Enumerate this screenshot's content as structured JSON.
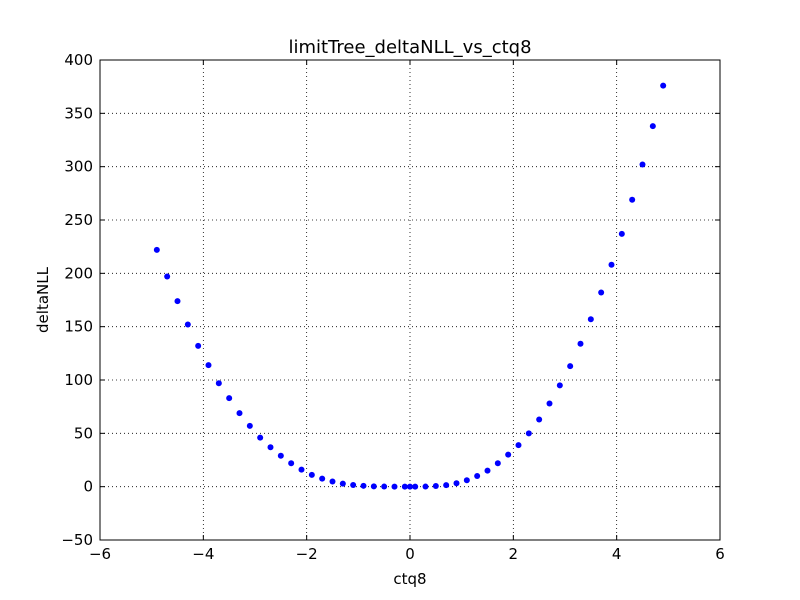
{
  "chart_data": {
    "type": "scatter",
    "title": "limitTree_deltaNLL_vs_ctq8",
    "xlabel": "ctq8",
    "ylabel": "deltaNLL",
    "xlim": [
      -6,
      6
    ],
    "ylim": [
      -50,
      400
    ],
    "xticks": [
      -6,
      -4,
      -2,
      0,
      2,
      4,
      6
    ],
    "xtick_labels": [
      "−6",
      "−4",
      "−2",
      "0",
      "2",
      "4",
      "6"
    ],
    "yticks": [
      -50,
      0,
      50,
      100,
      150,
      200,
      250,
      300,
      350,
      400
    ],
    "ytick_labels": [
      "−50",
      "0",
      "50",
      "100",
      "150",
      "200",
      "250",
      "300",
      "350",
      "400"
    ],
    "grid": true,
    "marker_color": "#0000ff",
    "x": [
      -4.9,
      -4.7,
      -4.5,
      -4.3,
      -4.1,
      -3.9,
      -3.7,
      -3.5,
      -3.3,
      -3.1,
      -2.9,
      -2.7,
      -2.5,
      -2.3,
      -2.1,
      -1.9,
      -1.7,
      -1.5,
      -1.3,
      -1.1,
      -0.9,
      -0.7,
      -0.5,
      -0.3,
      -0.1,
      0.0,
      0.1,
      0.3,
      0.5,
      0.7,
      0.9,
      1.1,
      1.3,
      1.5,
      1.7,
      1.9,
      2.1,
      2.3,
      2.5,
      2.7,
      2.9,
      3.1,
      3.3,
      3.5,
      3.7,
      3.9,
      4.1,
      4.3,
      4.5,
      4.7,
      4.9
    ],
    "y": [
      222,
      197,
      174,
      152,
      132,
      114,
      97,
      83,
      69,
      57,
      46,
      37,
      29,
      22,
      16,
      11,
      7.5,
      4.8,
      2.9,
      1.6,
      0.8,
      0.3,
      0.1,
      0.0,
      0.0,
      0.0,
      0.0,
      0.1,
      0.6,
      1.5,
      3.2,
      6,
      10,
      15,
      22,
      30,
      39,
      50,
      63,
      78,
      95,
      113,
      134,
      157,
      182,
      208,
      237,
      269,
      302,
      338,
      376
    ]
  }
}
